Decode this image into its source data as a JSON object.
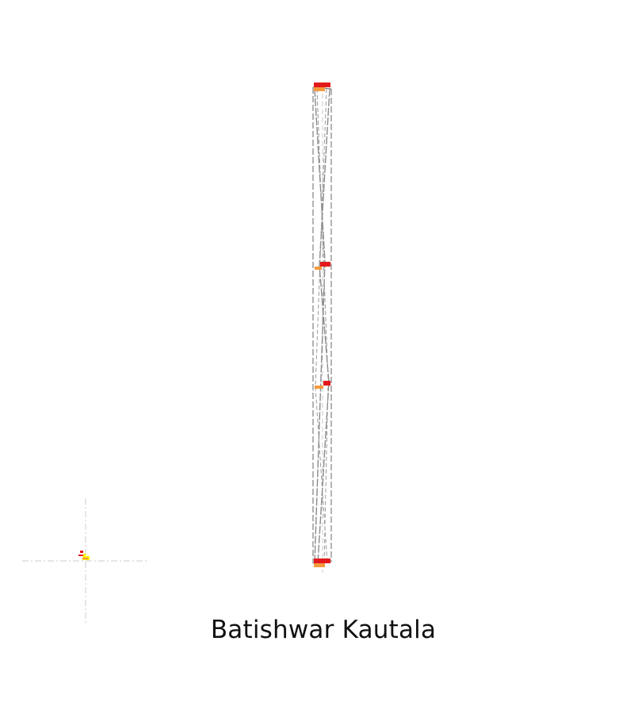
{
  "caption": "Batishwar Kautala",
  "colors": {
    "background": "#ffffff",
    "outline": "#808080",
    "centerline": "#c8c8c8",
    "marker_red": "#e31a1c",
    "marker_orange": "#f59a3c",
    "marker_yellow": "#ffee00",
    "text": "#111111"
  }
}
